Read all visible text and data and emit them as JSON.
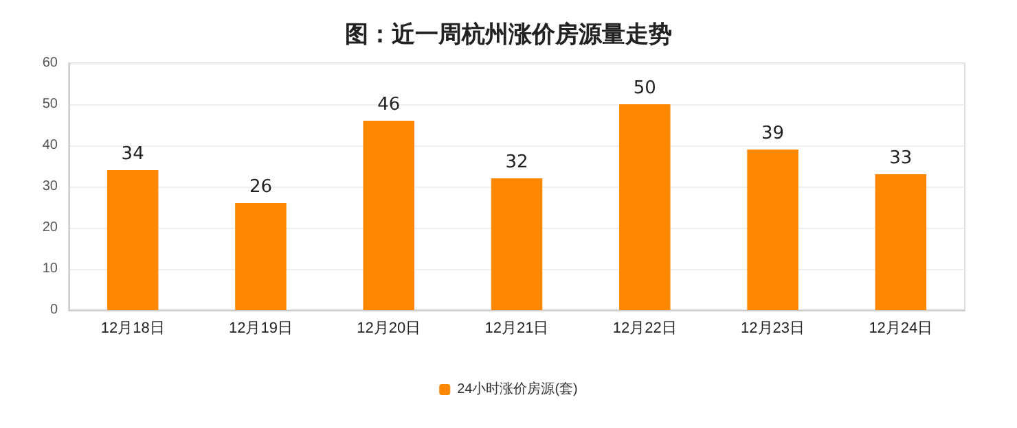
{
  "chart_data": {
    "type": "bar",
    "title": "图：近一周杭州涨价房源量走势",
    "categories": [
      "12月18日",
      "12月19日",
      "12月20日",
      "12月21日",
      "12月22日",
      "12月23日",
      "12月24日"
    ],
    "series": [
      {
        "name": "24小时涨价房源(套)",
        "color": "#ff8800",
        "values": [
          34,
          26,
          46,
          32,
          50,
          39,
          33
        ]
      }
    ],
    "ylim": [
      0,
      60
    ],
    "yticks": [
      0,
      10,
      20,
      30,
      40,
      50,
      60
    ],
    "grid": "y",
    "legend": "bottom",
    "data_labels": true
  }
}
